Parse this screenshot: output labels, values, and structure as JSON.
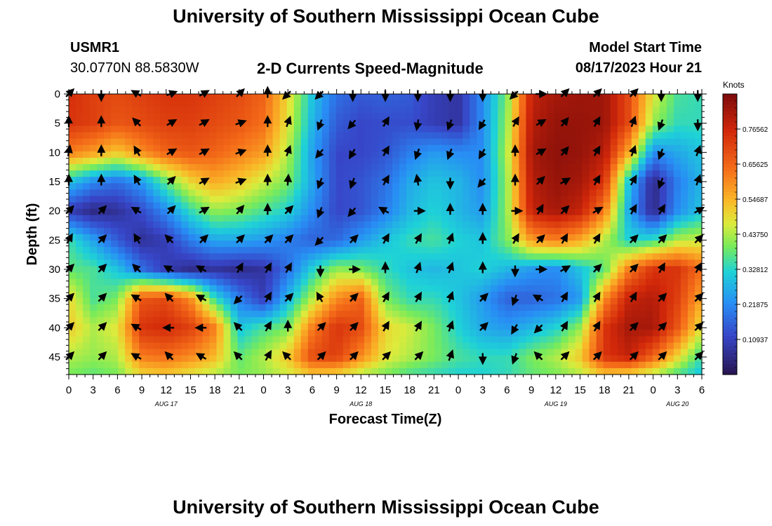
{
  "header": {
    "title": "University of Southern Mississippi Ocean Cube",
    "station_id": "USMR1",
    "station_coords": "30.0770N  88.5830W",
    "plot_title": "2-D Currents Speed-Magnitude",
    "model_start_label": "Model Start Time",
    "model_start_value": "08/17/2023 Hour 21",
    "repeated_title": "University of Southern Mississippi Ocean Cube"
  },
  "chart_data": {
    "type": "heatmap",
    "title": "2-D Currents Speed-Magnitude",
    "xlabel": "Forecast Time(Z)",
    "ylabel": "Depth (ft)",
    "x_range_hours": [
      0,
      78
    ],
    "y_range_ft": [
      0,
      48
    ],
    "x_tick_labels": [
      "0",
      "3",
      "6",
      "9",
      "12",
      "15",
      "18",
      "21",
      "0",
      "3",
      "6",
      "9",
      "12",
      "15",
      "18",
      "21",
      "0",
      "3",
      "6",
      "9",
      "12",
      "15",
      "18",
      "21",
      "0",
      "3",
      "6"
    ],
    "y_ticks": [
      0,
      5,
      10,
      15,
      20,
      25,
      30,
      35,
      40,
      45
    ],
    "date_labels": [
      {
        "text": "AUG 17",
        "hour": 12
      },
      {
        "text": "AUG 18",
        "hour": 36
      },
      {
        "text": "AUG 19",
        "hour": 60
      },
      {
        "text": "AUG 20",
        "hour": 75
      }
    ],
    "colorbar": {
      "unit": "Knots",
      "min": 0.0,
      "max": 0.875,
      "tick_labels": [
        "0.76562",
        "0.65625",
        "0.54687",
        "0.43750",
        "0.32812",
        "0.21875",
        "0.10937"
      ],
      "tick_values": [
        0.765625,
        0.65625,
        0.546875,
        0.4375,
        0.328125,
        0.21875,
        0.109375
      ]
    },
    "speed_field": {
      "x_hours": [
        0,
        3,
        6,
        9,
        12,
        15,
        18,
        21,
        24,
        27,
        30,
        33,
        36,
        39,
        42,
        45,
        48,
        51,
        54,
        57,
        60,
        63,
        66,
        69,
        72,
        75,
        78
      ],
      "y_depth_ft": [
        0,
        5,
        10,
        15,
        20,
        25,
        30,
        35,
        40,
        45,
        48
      ],
      "values_knots": [
        [
          0.75,
          0.72,
          0.7,
          0.72,
          0.74,
          0.74,
          0.72,
          0.7,
          0.66,
          0.5,
          0.3,
          0.18,
          0.15,
          0.16,
          0.15,
          0.1,
          0.08,
          0.22,
          0.4,
          0.78,
          0.82,
          0.83,
          0.83,
          0.7,
          0.48,
          0.36,
          0.34
        ],
        [
          0.74,
          0.72,
          0.68,
          0.7,
          0.72,
          0.72,
          0.7,
          0.68,
          0.64,
          0.48,
          0.28,
          0.15,
          0.12,
          0.13,
          0.13,
          0.1,
          0.08,
          0.22,
          0.42,
          0.8,
          0.84,
          0.84,
          0.83,
          0.7,
          0.42,
          0.34,
          0.34
        ],
        [
          0.62,
          0.58,
          0.52,
          0.6,
          0.66,
          0.68,
          0.66,
          0.62,
          0.58,
          0.44,
          0.25,
          0.12,
          0.12,
          0.14,
          0.2,
          0.24,
          0.22,
          0.22,
          0.44,
          0.82,
          0.85,
          0.84,
          0.8,
          0.56,
          0.22,
          0.26,
          0.3
        ],
        [
          0.3,
          0.22,
          0.18,
          0.24,
          0.38,
          0.5,
          0.56,
          0.52,
          0.46,
          0.4,
          0.26,
          0.12,
          0.14,
          0.18,
          0.26,
          0.3,
          0.28,
          0.22,
          0.42,
          0.8,
          0.84,
          0.82,
          0.74,
          0.3,
          0.05,
          0.2,
          0.28
        ],
        [
          0.1,
          0.05,
          0.07,
          0.13,
          0.22,
          0.34,
          0.42,
          0.4,
          0.36,
          0.32,
          0.22,
          0.12,
          0.14,
          0.2,
          0.28,
          0.32,
          0.28,
          0.24,
          0.42,
          0.78,
          0.82,
          0.78,
          0.62,
          0.26,
          0.05,
          0.22,
          0.3
        ],
        [
          0.35,
          0.25,
          0.15,
          0.07,
          0.1,
          0.2,
          0.26,
          0.26,
          0.24,
          0.2,
          0.16,
          0.17,
          0.24,
          0.3,
          0.34,
          0.36,
          0.32,
          0.3,
          0.4,
          0.58,
          0.62,
          0.56,
          0.44,
          0.32,
          0.34,
          0.44,
          0.46
        ],
        [
          0.38,
          0.36,
          0.3,
          0.18,
          0.1,
          0.06,
          0.08,
          0.06,
          0.08,
          0.18,
          0.32,
          0.42,
          0.4,
          0.34,
          0.3,
          0.28,
          0.3,
          0.32,
          0.28,
          0.24,
          0.22,
          0.3,
          0.38,
          0.62,
          0.74,
          0.74,
          0.64
        ],
        [
          0.5,
          0.36,
          0.4,
          0.68,
          0.7,
          0.6,
          0.34,
          0.2,
          0.1,
          0.28,
          0.44,
          0.6,
          0.66,
          0.4,
          0.34,
          0.34,
          0.3,
          0.24,
          0.16,
          0.16,
          0.18,
          0.24,
          0.6,
          0.78,
          0.8,
          0.72,
          0.56
        ],
        [
          0.52,
          0.44,
          0.48,
          0.74,
          0.76,
          0.72,
          0.62,
          0.3,
          0.36,
          0.4,
          0.62,
          0.74,
          0.7,
          0.5,
          0.46,
          0.4,
          0.32,
          0.26,
          0.24,
          0.28,
          0.32,
          0.42,
          0.74,
          0.82,
          0.82,
          0.68,
          0.48
        ],
        [
          0.44,
          0.42,
          0.44,
          0.62,
          0.64,
          0.6,
          0.54,
          0.38,
          0.44,
          0.52,
          0.7,
          0.72,
          0.6,
          0.48,
          0.44,
          0.4,
          0.36,
          0.34,
          0.34,
          0.4,
          0.44,
          0.52,
          0.74,
          0.78,
          0.66,
          0.5,
          0.34
        ],
        [
          0.4,
          0.38,
          0.4,
          0.5,
          0.52,
          0.48,
          0.44,
          0.4,
          0.42,
          0.46,
          0.52,
          0.5,
          0.44,
          0.4,
          0.36,
          0.34,
          0.32,
          0.32,
          0.34,
          0.38,
          0.4,
          0.44,
          0.52,
          0.5,
          0.44,
          0.36,
          0.3
        ]
      ]
    },
    "vector_columns_hours": [
      0,
      4,
      8.5,
      12.5,
      16.5,
      21,
      24.5,
      27,
      31,
      35,
      39,
      43,
      47,
      51,
      55,
      58,
      61,
      65,
      69.5,
      73,
      77.5
    ],
    "vector_rows_ft": [
      0,
      5,
      10,
      15,
      20,
      25,
      30,
      35,
      40,
      45
    ],
    "vector_directions_deg": [
      [
        45,
        180,
        300,
        70,
        60,
        45,
        0,
        225,
        225,
        180,
        180,
        180,
        180,
        180,
        225,
        90,
        45,
        45,
        45,
        180,
        180
      ],
      [
        0,
        0,
        315,
        60,
        60,
        70,
        0,
        20,
        200,
        220,
        30,
        190,
        200,
        210,
        30,
        60,
        40,
        30,
        20,
        200,
        180
      ],
      [
        10,
        0,
        330,
        60,
        60,
        70,
        0,
        20,
        220,
        210,
        30,
        200,
        200,
        210,
        0,
        60,
        40,
        30,
        20,
        200,
        20
      ],
      [
        0,
        0,
        330,
        45,
        60,
        70,
        0,
        5,
        200,
        200,
        30,
        350,
        180,
        220,
        0,
        45,
        60,
        30,
        30,
        200,
        20
      ],
      [
        45,
        45,
        300,
        45,
        60,
        40,
        0,
        45,
        200,
        220,
        300,
        90,
        0,
        0,
        90,
        30,
        45,
        60,
        30,
        30,
        60
      ],
      [
        30,
        45,
        330,
        315,
        45,
        45,
        45,
        45,
        225,
        45,
        30,
        30,
        20,
        0,
        30,
        45,
        30,
        30,
        45,
        45,
        45
      ],
      [
        45,
        45,
        315,
        300,
        300,
        30,
        30,
        30,
        180,
        90,
        0,
        20,
        20,
        0,
        180,
        90,
        60,
        45,
        45,
        30,
        30
      ],
      [
        45,
        45,
        300,
        315,
        300,
        225,
        30,
        45,
        330,
        45,
        30,
        30,
        20,
        45,
        200,
        300,
        30,
        30,
        30,
        45,
        45
      ],
      [
        45,
        45,
        300,
        270,
        270,
        315,
        30,
        0,
        45,
        45,
        30,
        30,
        20,
        45,
        210,
        225,
        30,
        30,
        45,
        45,
        45
      ],
      [
        45,
        45,
        300,
        315,
        300,
        315,
        30,
        315,
        45,
        45,
        45,
        45,
        20,
        180,
        200,
        315,
        45,
        45,
        45,
        45,
        45
      ]
    ]
  }
}
